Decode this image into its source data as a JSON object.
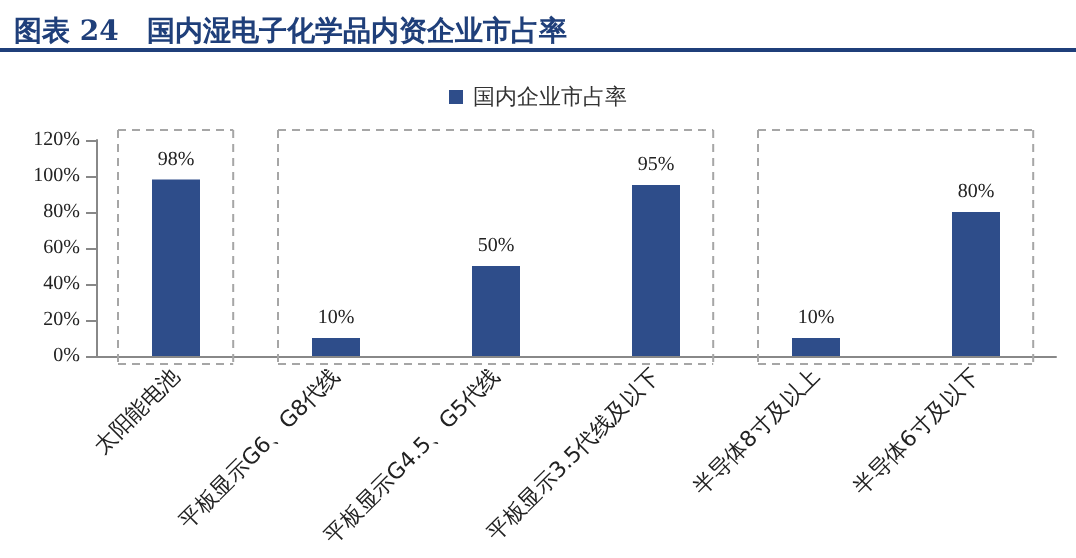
{
  "chart_data": {
    "type": "bar",
    "title": "图表 24　国内湿电子化学品内资企业市占率",
    "categories": [
      "太阳能电池",
      "平板显示G6、G8代线",
      "平板显示G4.5、G5代线",
      "平板显示3.5代线及以下",
      "半导体8寸及以上",
      "半导体6寸及以下"
    ],
    "series": [
      {
        "name": "国内企业市占率",
        "color": "#2e4d8a",
        "values": [
          98,
          10,
          50,
          95,
          10,
          80
        ],
        "value_labels": [
          "98%",
          "10%",
          "50%",
          "95%",
          "10%",
          "80%"
        ]
      }
    ],
    "ylim": [
      0,
      120
    ],
    "yticks": [
      {
        "value": 0,
        "label": "0%"
      },
      {
        "value": 20,
        "label": "20%"
      },
      {
        "value": 40,
        "label": "40%"
      },
      {
        "value": 60,
        "label": "60%"
      },
      {
        "value": 80,
        "label": "80%"
      },
      {
        "value": 100,
        "label": "100%"
      },
      {
        "value": 120,
        "label": "120%"
      }
    ],
    "grid": false,
    "legend": "top"
  }
}
